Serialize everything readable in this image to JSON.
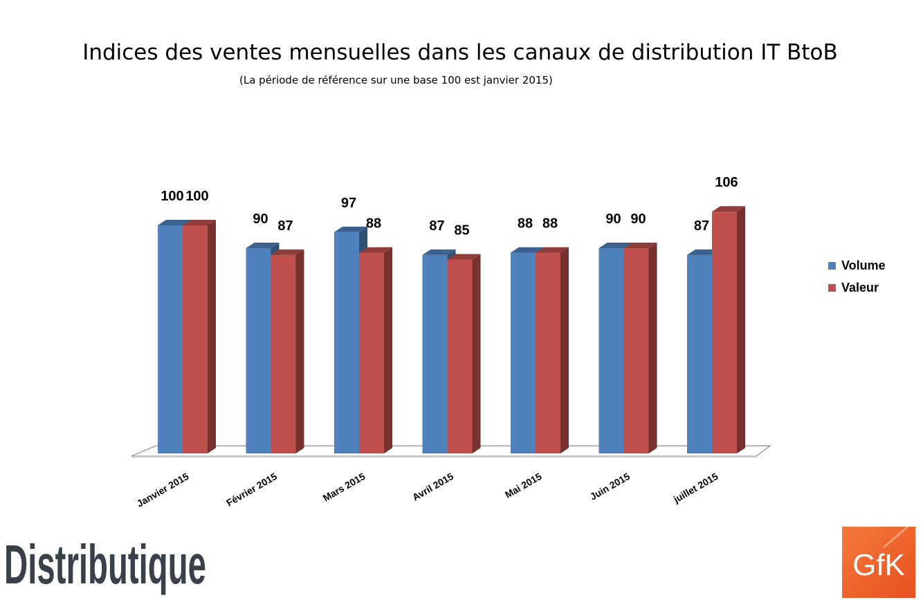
{
  "title": "Indices des ventes mensuelles dans les canaux de distribution IT BtoB",
  "subtitle": "(La période de référence sur une base 100 est janvier 2015)",
  "chart_data": {
    "type": "bar",
    "categories": [
      "Janvier 2015",
      "Février 2015",
      "Mars 2015",
      "Avril 2015",
      "Mai 2015",
      "Juin 2015",
      "juillet 2015"
    ],
    "series": [
      {
        "name": "Volume",
        "values": [
          100,
          90,
          97,
          87,
          88,
          90,
          87
        ],
        "color": "#4f81bd"
      },
      {
        "name": "Valeur",
        "values": [
          100,
          87,
          88,
          85,
          88,
          90,
          106
        ],
        "color": "#c0504d"
      }
    ],
    "ylim": [
      0,
      110
    ],
    "grid": false,
    "legend": "right",
    "data_labels": true
  },
  "logos": {
    "distributique": "Distributique",
    "gfk": "GfK"
  }
}
